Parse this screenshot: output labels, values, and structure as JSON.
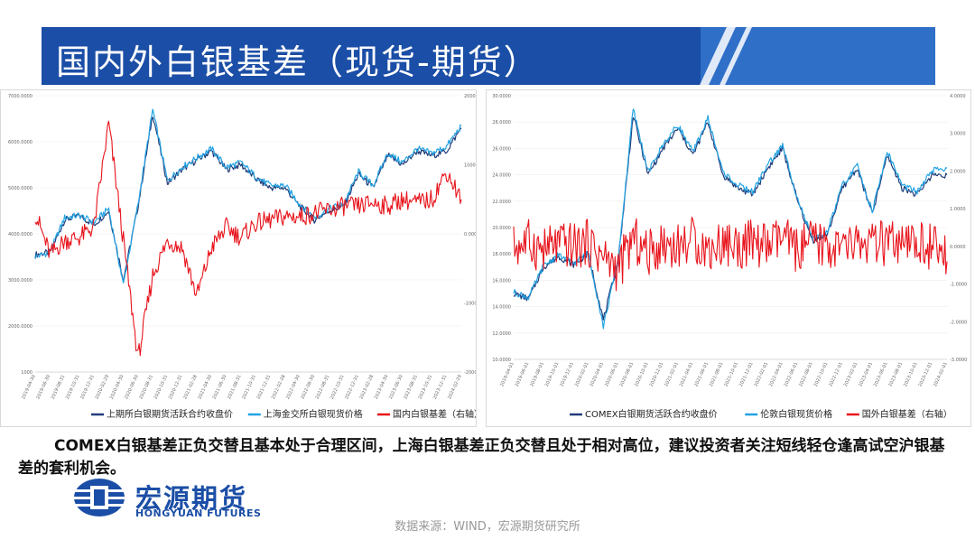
{
  "title": "国内外白银基差（现货-期货）",
  "description": "COMEX白银基差正负交替且基本处于合理区间，上海白银基差正负交替且处于相对高位，建议投资者关注短线轻仓逢高试空沪银基差的套利机会。",
  "logo": {
    "cn": "宏源期货",
    "en": "HONGYUAN FUTURES"
  },
  "source": "数据来源：WIND，宏源期货研究所",
  "colors": {
    "banner": "#1b4ea6",
    "navy": "#1f3d7a",
    "lightblue": "#22a3e3",
    "red": "#e8131b"
  },
  "chart_data": [
    {
      "type": "line",
      "left_axis": {
        "ylim": [
          1000,
          7000
        ],
        "ticks": [
          "1000",
          "2000.0000",
          "3000.0000",
          "4000.0000",
          "5000.0000",
          "6000.0000",
          "7000.0000"
        ]
      },
      "right_axis": {
        "ylim": [
          -2000,
          2000
        ],
        "ticks": [
          "-2000.0000",
          "-1000.0000",
          "0.0000",
          "1000.0000",
          "2000.0000"
        ]
      },
      "x_ticks": [
        "2019-04-30",
        "2019-06-30",
        "2019-08-31",
        "2019-10-31",
        "2019-12-31",
        "2020-02-29",
        "2020-04-30",
        "2020-06-30",
        "2020-08-31",
        "2020-10-31",
        "2020-12-31",
        "2021-02-28",
        "2021-04-30",
        "2021-06-30",
        "2021-08-31",
        "2021-10-31",
        "2021-12-31",
        "2022-02-28",
        "2022-04-30",
        "2022-06-30",
        "2022-08-31",
        "2022-10-31",
        "2022-12-31",
        "2023-02-28",
        "2023-04-30",
        "2023-06-30",
        "2023-08-31",
        "2023-10-31",
        "2023-12-31",
        "2024-02-29"
      ],
      "series": [
        {
          "name": "上期所白银期货活跃合约收盘价",
          "axis": "left",
          "color": "#1f3d7a",
          "values": [
            3550,
            3600,
            4300,
            4400,
            4200,
            4500,
            3000,
            4600,
            6600,
            5100,
            5400,
            5600,
            5800,
            5400,
            5500,
            5200,
            5000,
            5000,
            4600,
            4300,
            4500,
            4600,
            5300,
            5000,
            5700,
            5500,
            5800,
            5700,
            5800,
            6300
          ]
        },
        {
          "name": "上海金交所白银现货价格",
          "axis": "left",
          "color": "#22a3e3",
          "values": [
            3500,
            3600,
            4350,
            4400,
            4250,
            4550,
            2900,
            4650,
            6700,
            5150,
            5450,
            5650,
            5850,
            5450,
            5550,
            5250,
            5050,
            5050,
            4650,
            4350,
            4550,
            4650,
            5350,
            5050,
            5750,
            5550,
            5850,
            5750,
            5900,
            6350
          ]
        },
        {
          "name": "国内白银基差（右轴）",
          "axis": "right",
          "color": "#e8131b",
          "values": [
            300,
            -300,
            -100,
            -50,
            100,
            1600,
            -100,
            -1800,
            -600,
            -100,
            -200,
            -900,
            -200,
            100,
            -50,
            150,
            200,
            250,
            250,
            300,
            350,
            400,
            400,
            450,
            400,
            500,
            450,
            500,
            900,
            500
          ]
        }
      ]
    },
    {
      "type": "line",
      "left_axis": {
        "ylim": [
          10,
          30
        ],
        "ticks": [
          "10.0000",
          "12.0000",
          "14.0000",
          "16.0000",
          "18.0000",
          "20.0000",
          "22.0000",
          "24.0000",
          "26.0000",
          "28.0000",
          "30.0000"
        ]
      },
      "right_axis": {
        "ylim": [
          -3,
          4
        ],
        "ticks": [
          "-3.0000",
          "-2.0000",
          "-1.0000",
          "0.0000",
          "1.0000",
          "2.0000",
          "3.0000",
          "4.0000"
        ]
      },
      "x_ticks": [
        "2019-04-01",
        "2019-06-01",
        "2019-08-01",
        "2019-10-01",
        "2019-12-01",
        "2020-02-01",
        "2020-04-01",
        "2020-06-01",
        "2020-08-01",
        "2020-10-01",
        "2020-12-01",
        "2021-02-01",
        "2021-04-01",
        "2021-06-01",
        "2021-08-01",
        "2021-10-01",
        "2021-12-01",
        "2022-02-01",
        "2022-04-01",
        "2022-06-01",
        "2022-08-01",
        "2022-10-01",
        "2022-12-01",
        "2023-02-01",
        "2023-04-01",
        "2023-06-01",
        "2023-08-01",
        "2023-10-01",
        "2023-12-01",
        "2024-02-01"
      ],
      "series": [
        {
          "name": "COMEX白银期货活跃合约收盘价",
          "axis": "left",
          "color": "#1f3d7a",
          "values": [
            15.0,
            14.6,
            17.0,
            17.8,
            17.2,
            18.0,
            13.0,
            17.5,
            28.5,
            24.0,
            26.0,
            27.5,
            25.5,
            28.0,
            24.0,
            23.0,
            22.5,
            24.5,
            26.0,
            22.0,
            19.0,
            19.5,
            23.0,
            24.5,
            21.0,
            25.5,
            23.0,
            22.5,
            24.0,
            24.0
          ]
        },
        {
          "name": "伦敦白银现货价格",
          "axis": "left",
          "color": "#22a3e3",
          "values": [
            15.1,
            14.7,
            17.1,
            17.9,
            17.3,
            18.1,
            12.5,
            17.6,
            29.0,
            24.2,
            26.3,
            27.8,
            25.7,
            28.3,
            24.2,
            23.2,
            22.7,
            24.8,
            26.2,
            22.2,
            19.1,
            19.7,
            23.2,
            24.7,
            21.2,
            25.8,
            23.2,
            22.7,
            24.3,
            24.5
          ]
        },
        {
          "name": "国外白银基差（右轴）",
          "axis": "right",
          "color": "#e8131b",
          "values": [
            0.0,
            0.1,
            -0.1,
            0.05,
            0.0,
            0.1,
            -0.3,
            -0.6,
            0.2,
            -0.2,
            0.1,
            0.0,
            0.2,
            -0.1,
            0.1,
            0.0,
            0.1,
            0.0,
            0.2,
            -0.1,
            0.1,
            0.0,
            -0.1,
            0.1,
            0.0,
            0.1,
            -0.1,
            0.1,
            0.0,
            -0.4
          ]
        }
      ]
    }
  ]
}
